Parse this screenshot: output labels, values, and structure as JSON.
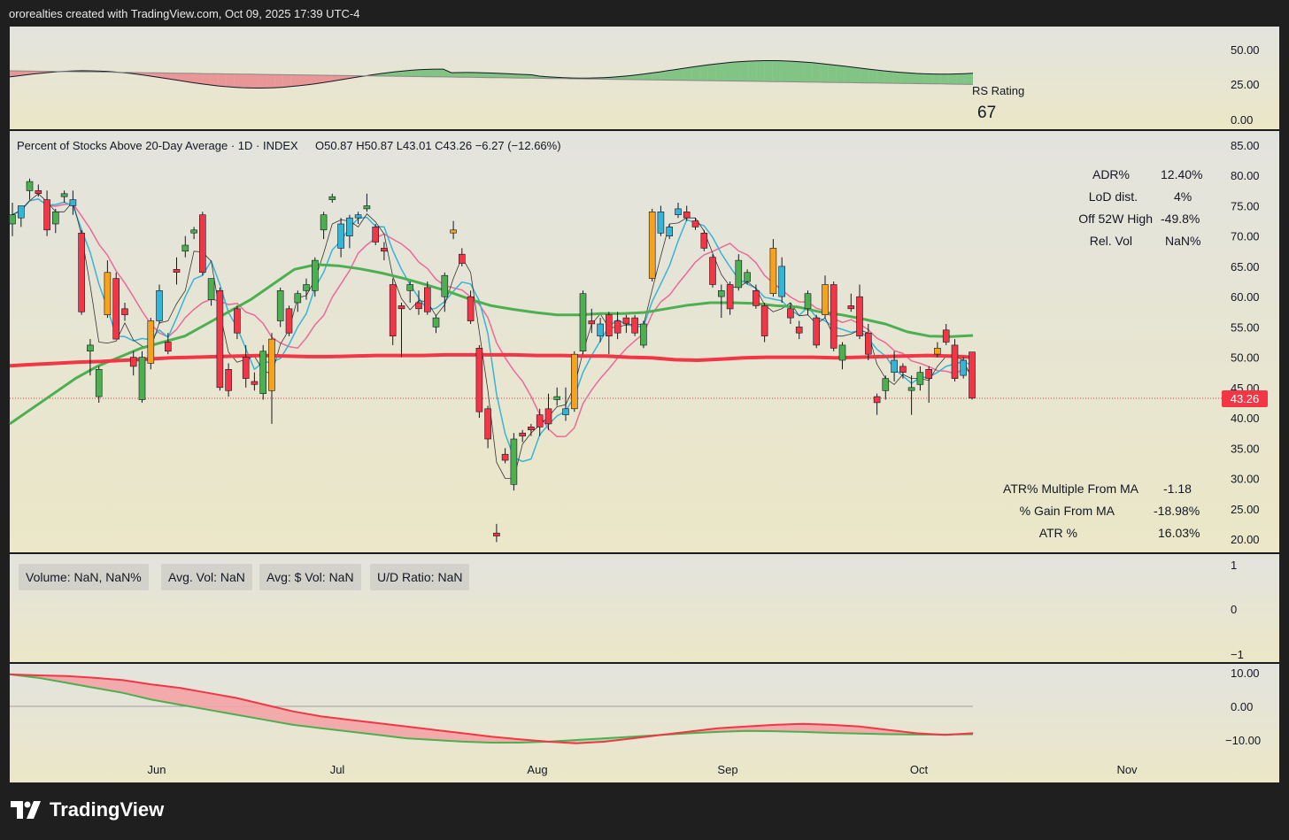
{
  "header": "ororealties created with TradingView.com, Oct 09, 2025 17:39 UTC-4",
  "brand": "TradingView",
  "colors": {
    "up": "#4caf50",
    "down": "#f23645",
    "cyan": "#35b5d6",
    "orange": "#f7a21b",
    "bg": "#ecebd2"
  },
  "rs_panel": {
    "label": "RS Rating",
    "value": "67",
    "ticks": [
      "50.00",
      "25.00",
      "0.00"
    ]
  },
  "main_panel": {
    "title": "Percent of Stocks Above 20-Day Average · 1D · INDEX",
    "ohlc": "O50.87  H50.87  L43.01  C43.26  −6.27 (−12.66%)",
    "price_label": "43.26",
    "ticks": [
      "85.00",
      "80.00",
      "75.00",
      "70.00",
      "65.00",
      "60.00",
      "55.00",
      "50.00",
      "45.00",
      "40.00",
      "35.00",
      "30.00",
      "25.00",
      "20.00"
    ],
    "stats": [
      {
        "label": "ADR%",
        "value": "12.40%"
      },
      {
        "label": "LoD dist.",
        "value": "4%"
      },
      {
        "label": "Off 52W High",
        "value": "-49.8%"
      },
      {
        "label": "Rel. Vol",
        "value": "NaN%"
      }
    ],
    "atr_stats": [
      {
        "label": "ATR% Multiple From MA",
        "value": "-1.18"
      },
      {
        "label": "% Gain From MA",
        "value": "-18.98%"
      },
      {
        "label": "ATR %",
        "value": "16.03%"
      }
    ]
  },
  "volume_panel": {
    "boxes": [
      "Volume: NaN, NaN%",
      "Avg. Vol: NaN",
      "Avg: $ Vol: NaN",
      "U/D Ratio: NaN"
    ],
    "ticks": [
      "1",
      "0",
      "−1"
    ]
  },
  "osc_panel": {
    "ticks": [
      "10.00",
      "0.00",
      "−10.00"
    ]
  },
  "x_axis": [
    "Jun",
    "Jul",
    "Aug",
    "Sep",
    "Oct",
    "Nov"
  ],
  "chart_data": {
    "type": "candlestick",
    "title": "Percent of Stocks Above 20-Day Average · 1D · INDEX",
    "x_axis_labels": [
      "Jun",
      "Jul",
      "Aug",
      "Sep",
      "Oct",
      "Nov"
    ],
    "ylim": [
      20,
      85
    ],
    "last_close": 43.26,
    "candles": [
      [
        72.0,
        75.5,
        70.0,
        73.5,
        "up"
      ],
      [
        73.0,
        75.0,
        71.5,
        75.0,
        "cyan"
      ],
      [
        77.5,
        79.5,
        76.0,
        79.0,
        "up"
      ],
      [
        77.5,
        78.5,
        76.5,
        77.0,
        "down"
      ],
      [
        76.0,
        77.5,
        70.0,
        71.0,
        "down"
      ],
      [
        72.0,
        74.5,
        70.5,
        74.0,
        "up"
      ],
      [
        76.5,
        77.5,
        75.5,
        77.0,
        "up"
      ],
      [
        75.0,
        77.5,
        73.5,
        76.0,
        "cyan"
      ],
      [
        70.5,
        71.0,
        57.0,
        57.5,
        "down"
      ],
      [
        51.0,
        53.0,
        47.0,
        52.0,
        "up"
      ],
      [
        43.5,
        48.5,
        42.5,
        48.0,
        "up"
      ],
      [
        64.0,
        66.0,
        56.5,
        57.0,
        "orange"
      ],
      [
        63.0,
        64.0,
        53.0,
        53.0,
        "down"
      ],
      [
        58.0,
        59.0,
        56.0,
        57.0,
        "down"
      ],
      [
        50.0,
        51.0,
        47.0,
        48.5,
        "down"
      ],
      [
        43.0,
        51.0,
        42.5,
        50.0,
        "up"
      ],
      [
        49.0,
        56.5,
        48.0,
        56.0,
        "orange"
      ],
      [
        56.0,
        62.0,
        55.5,
        61.0,
        "cyan"
      ],
      [
        52.5,
        54.0,
        50.5,
        51.0,
        "down"
      ],
      [
        64.0,
        66.5,
        62.0,
        64.5,
        "down"
      ],
      [
        68.5,
        70.0,
        66.5,
        67.5,
        "up"
      ],
      [
        71.0,
        71.5,
        69.5,
        70.5,
        "up"
      ],
      [
        73.5,
        74.0,
        63.5,
        64.0,
        "down"
      ],
      [
        59.5,
        63.0,
        58.5,
        63.0,
        "up"
      ],
      [
        61.0,
        61.5,
        44.5,
        45.0,
        "down"
      ],
      [
        48.0,
        49.0,
        43.5,
        44.5,
        "down"
      ],
      [
        54.0,
        58.5,
        53.0,
        58.0,
        "down"
      ],
      [
        50.0,
        52.0,
        45.0,
        46.5,
        "down"
      ],
      [
        45.5,
        47.5,
        44.5,
        46.0,
        "down"
      ],
      [
        44.0,
        52.0,
        43.0,
        51.0,
        "up"
      ],
      [
        53.0,
        54.0,
        39.0,
        44.5,
        "orange"
      ],
      [
        56.0,
        61.5,
        55.0,
        61.0,
        "up"
      ],
      [
        54.0,
        58.5,
        53.5,
        58.0,
        "down"
      ],
      [
        59.0,
        61.0,
        57.5,
        60.5,
        "up"
      ],
      [
        61.0,
        63.0,
        59.5,
        62.0,
        "up"
      ],
      [
        61.0,
        66.5,
        60.0,
        66.0,
        "up"
      ],
      [
        71.0,
        74.0,
        69.5,
        73.5,
        "up"
      ],
      [
        76.0,
        77.0,
        75.5,
        76.5,
        "up"
      ],
      [
        72.0,
        73.0,
        66.5,
        68.0,
        "cyan"
      ],
      [
        70.0,
        73.5,
        68.0,
        73.0,
        "cyan"
      ],
      [
        73.0,
        74.0,
        72.0,
        73.5,
        "cyan"
      ],
      [
        75.0,
        77.0,
        74.0,
        74.5,
        "up"
      ],
      [
        71.5,
        72.0,
        68.5,
        69.0,
        "down"
      ],
      [
        68.0,
        69.0,
        66.0,
        67.5,
        "down"
      ],
      [
        62.0,
        63.0,
        52.0,
        53.5,
        "down"
      ],
      [
        58.5,
        59.0,
        50.0,
        58.0,
        "down"
      ],
      [
        61.0,
        62.5,
        59.0,
        62.0,
        "up"
      ],
      [
        59.0,
        61.0,
        57.0,
        58.0,
        "down"
      ],
      [
        61.5,
        62.5,
        57.0,
        57.5,
        "down"
      ],
      [
        56.5,
        57.0,
        54.0,
        55.0,
        "up"
      ],
      [
        60.0,
        64.0,
        57.5,
        63.5,
        "up"
      ],
      [
        71.0,
        72.5,
        69.5,
        70.5,
        "orange"
      ],
      [
        67.0,
        68.0,
        65.0,
        65.5,
        "down"
      ],
      [
        60.0,
        61.0,
        55.5,
        56.0,
        "down"
      ],
      [
        51.5,
        52.0,
        40.0,
        41.0,
        "down"
      ],
      [
        41.5,
        42.0,
        35.0,
        36.5,
        "down"
      ],
      [
        21.0,
        22.5,
        19.5,
        20.5,
        "down"
      ],
      [
        34.0,
        35.0,
        32.5,
        33.0,
        "down"
      ],
      [
        29.0,
        37.5,
        28.0,
        36.5,
        "up"
      ],
      [
        37.0,
        38.0,
        36.0,
        37.5,
        "down"
      ],
      [
        38.0,
        39.0,
        37.0,
        38.5,
        "down"
      ],
      [
        38.5,
        41.5,
        37.0,
        40.5,
        "down"
      ],
      [
        39.0,
        44.0,
        38.0,
        41.5,
        "down"
      ],
      [
        43.0,
        45.0,
        42.0,
        43.5,
        "up"
      ],
      [
        40.5,
        45.0,
        39.5,
        41.5,
        "cyan"
      ],
      [
        41.5,
        51.0,
        41.0,
        50.5,
        "orange"
      ],
      [
        51.0,
        61.0,
        50.5,
        60.5,
        "up"
      ],
      [
        56.0,
        58.0,
        54.0,
        55.5,
        "down"
      ],
      [
        53.5,
        56.5,
        52.5,
        55.5,
        "cyan"
      ],
      [
        57.0,
        57.5,
        50.5,
        53.5,
        "down"
      ],
      [
        54.0,
        57.5,
        53.0,
        56.0,
        "down"
      ],
      [
        55.5,
        57.0,
        54.0,
        56.5,
        "down"
      ],
      [
        56.5,
        57.0,
        53.5,
        54.0,
        "down"
      ],
      [
        52.0,
        56.0,
        51.5,
        55.5,
        "up"
      ],
      [
        63.0,
        74.5,
        62.5,
        74.0,
        "orange"
      ],
      [
        74.0,
        75.0,
        70.0,
        70.5,
        "cyan"
      ],
      [
        70.0,
        72.0,
        69.5,
        71.5,
        "cyan"
      ],
      [
        73.5,
        75.5,
        73.0,
        74.5,
        "cyan"
      ],
      [
        74.0,
        75.0,
        72.5,
        73.0,
        "down"
      ],
      [
        72.5,
        73.0,
        71.0,
        71.5,
        "down"
      ],
      [
        70.5,
        71.0,
        67.5,
        68.0,
        "down"
      ],
      [
        66.5,
        67.0,
        61.5,
        62.0,
        "down"
      ],
      [
        60.0,
        62.0,
        56.5,
        61.0,
        "up"
      ],
      [
        58.0,
        62.5,
        57.0,
        62.0,
        "down"
      ],
      [
        66.0,
        67.0,
        61.0,
        61.5,
        "up"
      ],
      [
        62.5,
        64.5,
        62.0,
        64.0,
        "up"
      ],
      [
        61.0,
        62.0,
        58.0,
        58.5,
        "down"
      ],
      [
        58.5,
        59.0,
        52.5,
        53.5,
        "down"
      ],
      [
        68.0,
        69.5,
        60.0,
        60.5,
        "orange"
      ],
      [
        65.0,
        66.5,
        59.0,
        60.0,
        "cyan"
      ],
      [
        58.0,
        59.0,
        55.5,
        56.5,
        "down"
      ],
      [
        55.0,
        56.0,
        53.0,
        54.0,
        "down"
      ],
      [
        58.0,
        61.0,
        57.0,
        60.5,
        "up"
      ],
      [
        56.5,
        57.0,
        51.5,
        52.0,
        "down"
      ],
      [
        62.0,
        63.5,
        56.5,
        57.0,
        "orange"
      ],
      [
        62.0,
        62.5,
        51.0,
        51.5,
        "down"
      ],
      [
        49.5,
        52.5,
        48.0,
        52.0,
        "up"
      ],
      [
        58.5,
        60.5,
        57.5,
        58.0,
        "down"
      ],
      [
        60.0,
        62.0,
        53.0,
        53.5,
        "down"
      ],
      [
        54.0,
        55.5,
        49.5,
        50.5,
        "down"
      ],
      [
        43.5,
        44.0,
        40.5,
        42.5,
        "down"
      ],
      [
        44.5,
        47.0,
        43.0,
        46.5,
        "up"
      ],
      [
        49.5,
        51.0,
        46.0,
        47.5,
        "cyan"
      ],
      [
        48.5,
        49.0,
        46.5,
        47.5,
        "down"
      ],
      [
        45.0,
        47.0,
        40.5,
        44.5,
        "up"
      ],
      [
        45.5,
        48.5,
        44.5,
        47.5,
        "up"
      ],
      [
        48.0,
        48.5,
        42.5,
        46.5,
        "down"
      ],
      [
        50.5,
        52.5,
        50.0,
        51.5,
        "orange"
      ],
      [
        54.5,
        55.5,
        52.0,
        52.5,
        "down"
      ],
      [
        52.0,
        53.0,
        46.0,
        46.5,
        "down"
      ],
      [
        47.0,
        50.0,
        46.5,
        49.5,
        "cyan"
      ],
      [
        50.87,
        50.87,
        43.01,
        43.26,
        "down"
      ]
    ],
    "ma_long": [
      48.6,
      48.8,
      49.0,
      49.2,
      49.3,
      49.5,
      49.7,
      49.9,
      50.0,
      50.1,
      50.2,
      50.3,
      50.2,
      50.1,
      50.1,
      50.2,
      50.3,
      50.3,
      50.3,
      50.4,
      50.4,
      50.4,
      50.4,
      50.3,
      50.3,
      50.2,
      50.2,
      50.0,
      49.9,
      49.6,
      49.5,
      49.7,
      49.9,
      50.0,
      50.0,
      50.0,
      49.9,
      50.0,
      50.1,
      50.2,
      50.3,
      50.2,
      50.0
    ],
    "ma_mid": [
      39.0,
      41.5,
      44.0,
      46.5,
      48.5,
      50.0,
      51.5,
      52.5,
      53.5,
      55.5,
      57.5,
      59.5,
      62.0,
      64.5,
      65.3,
      65.1,
      64.6,
      63.9,
      63.0,
      62.0,
      60.9,
      59.6,
      58.5,
      57.9,
      57.4,
      57.0,
      57.0,
      57.2,
      57.2,
      57.4,
      58.0,
      58.6,
      59.0,
      59.0,
      58.9,
      58.5,
      58.3,
      57.5,
      57.0,
      56.3,
      55.5,
      54.2,
      53.5,
      53.4,
      53.6
    ],
    "osc_line": [
      9.5,
      9.2,
      9.0,
      8.5,
      7.8,
      6.5,
      5.5,
      4.0,
      2.5,
      0.5,
      -1.5,
      -3.0,
      -4.0,
      -5.0,
      -6.0,
      -7.0,
      -8.0,
      -9.0,
      -9.8,
      -10.5,
      -11.0,
      -10.5,
      -9.5,
      -8.5,
      -7.5,
      -6.5,
      -6.0,
      -5.5,
      -5.2,
      -5.5,
      -6.0,
      -7.0,
      -8.0,
      -8.5,
      -8.0
    ],
    "osc_signal": [
      9.5,
      8.5,
      7.0,
      5.5,
      4.0,
      2.0,
      0.5,
      -1.0,
      -2.5,
      -4.0,
      -5.5,
      -6.5,
      -7.5,
      -8.5,
      -9.5,
      -10.0,
      -10.5,
      -10.8,
      -10.8,
      -10.5,
      -10.0,
      -9.5,
      -9.0,
      -8.5,
      -8.0,
      -7.6,
      -7.3,
      -7.4,
      -7.6,
      -7.9,
      -8.1,
      -8.3,
      -8.4,
      -8.4,
      -8.3
    ]
  }
}
